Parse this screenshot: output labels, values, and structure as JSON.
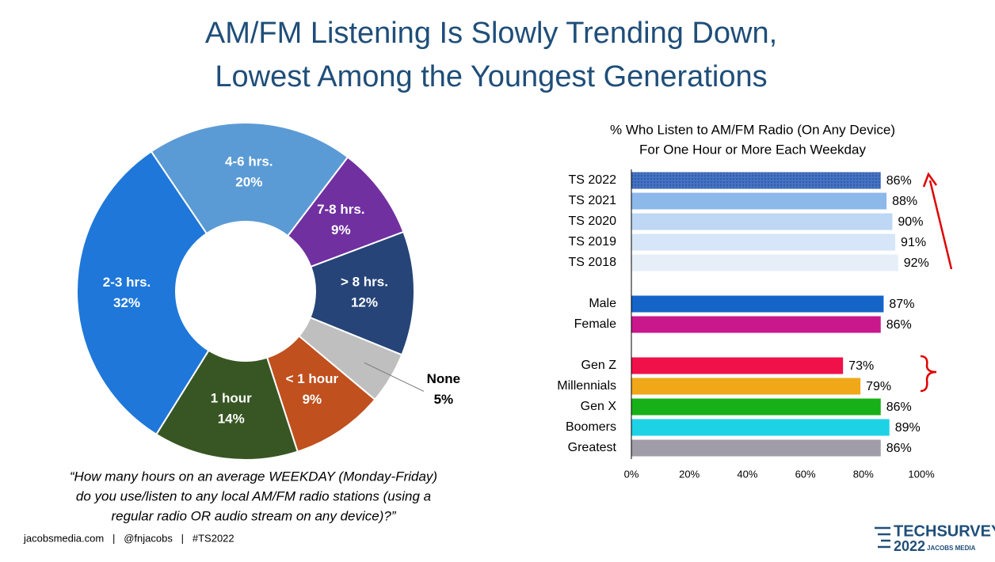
{
  "slide": {
    "title": [
      "AM/FM Listening Is Slowly Trending Down,",
      "Lowest Among the Youngest Generations"
    ],
    "question": [
      "“How many hours on an average WEEKDAY (Monday-Friday)",
      "do you use/listen to any local AM/FM radio stations (using a",
      "regular radio OR audio stream on any device)?”"
    ],
    "footer": "jacobsmedia.com   |   @fnjacobs   |   #TS2022",
    "logo": {
      "name": "TECHSURVEY",
      "year": "2022",
      "company": "JACOBS MEDIA"
    }
  },
  "chart_data": [
    {
      "type": "donut",
      "categories": [
        "4-6 hrs.",
        "7-8 hrs.",
        "> 8 hrs.",
        "None",
        "< 1 hour",
        "1 hour",
        "2-3 hrs."
      ],
      "values": [
        20,
        9,
        12,
        5,
        9,
        14,
        32
      ],
      "value_labels": [
        "20%",
        "9%",
        "12%",
        "5%",
        "9%",
        "14%",
        "32%"
      ],
      "colors": [
        "#5b9bd5",
        "#7030a0",
        "#264478",
        "#bfbfbf",
        "#c0501e",
        "#375623",
        "#1f77d9"
      ]
    },
    {
      "type": "hbar",
      "title": "% Who Listen to AM/FM Radio (On Any Device)",
      "subtitle": "For One Hour or More Each Weekday",
      "categories": [
        "TS 2022",
        "TS 2021",
        "TS 2020",
        "TS 2019",
        "TS 2018",
        null,
        "Male",
        "Female",
        null,
        "Gen Z",
        "Millennials",
        "Gen X",
        "Boomers",
        "Greatest"
      ],
      "values": [
        86,
        88,
        90,
        91,
        92,
        null,
        87,
        86,
        null,
        73,
        79,
        86,
        89,
        86
      ],
      "value_labels": [
        "86%",
        "88%",
        "90%",
        "91%",
        "92%",
        null,
        "87%",
        "86%",
        null,
        "73%",
        "79%",
        "86%",
        "89%",
        "86%"
      ],
      "colors": [
        "#4472c4",
        "#8db8ea",
        "#bdd7f5",
        "#d6e6f8",
        "#e6eef8",
        null,
        "#1565c8",
        "#c9188b",
        null,
        "#f0104a",
        "#f0a818",
        "#18b018",
        "#1ed2e6",
        "#a09ca8"
      ],
      "xlim": [
        0,
        100
      ],
      "xticks": [
        {
          "value": 0,
          "label": "0%"
        },
        {
          "value": 20,
          "label": "20%"
        },
        {
          "value": 40,
          "label": "40%"
        },
        {
          "value": 60,
          "label": "60%"
        },
        {
          "value": 80,
          "label": "80%"
        },
        {
          "value": 100,
          "label": "100%"
        }
      ]
    }
  ]
}
